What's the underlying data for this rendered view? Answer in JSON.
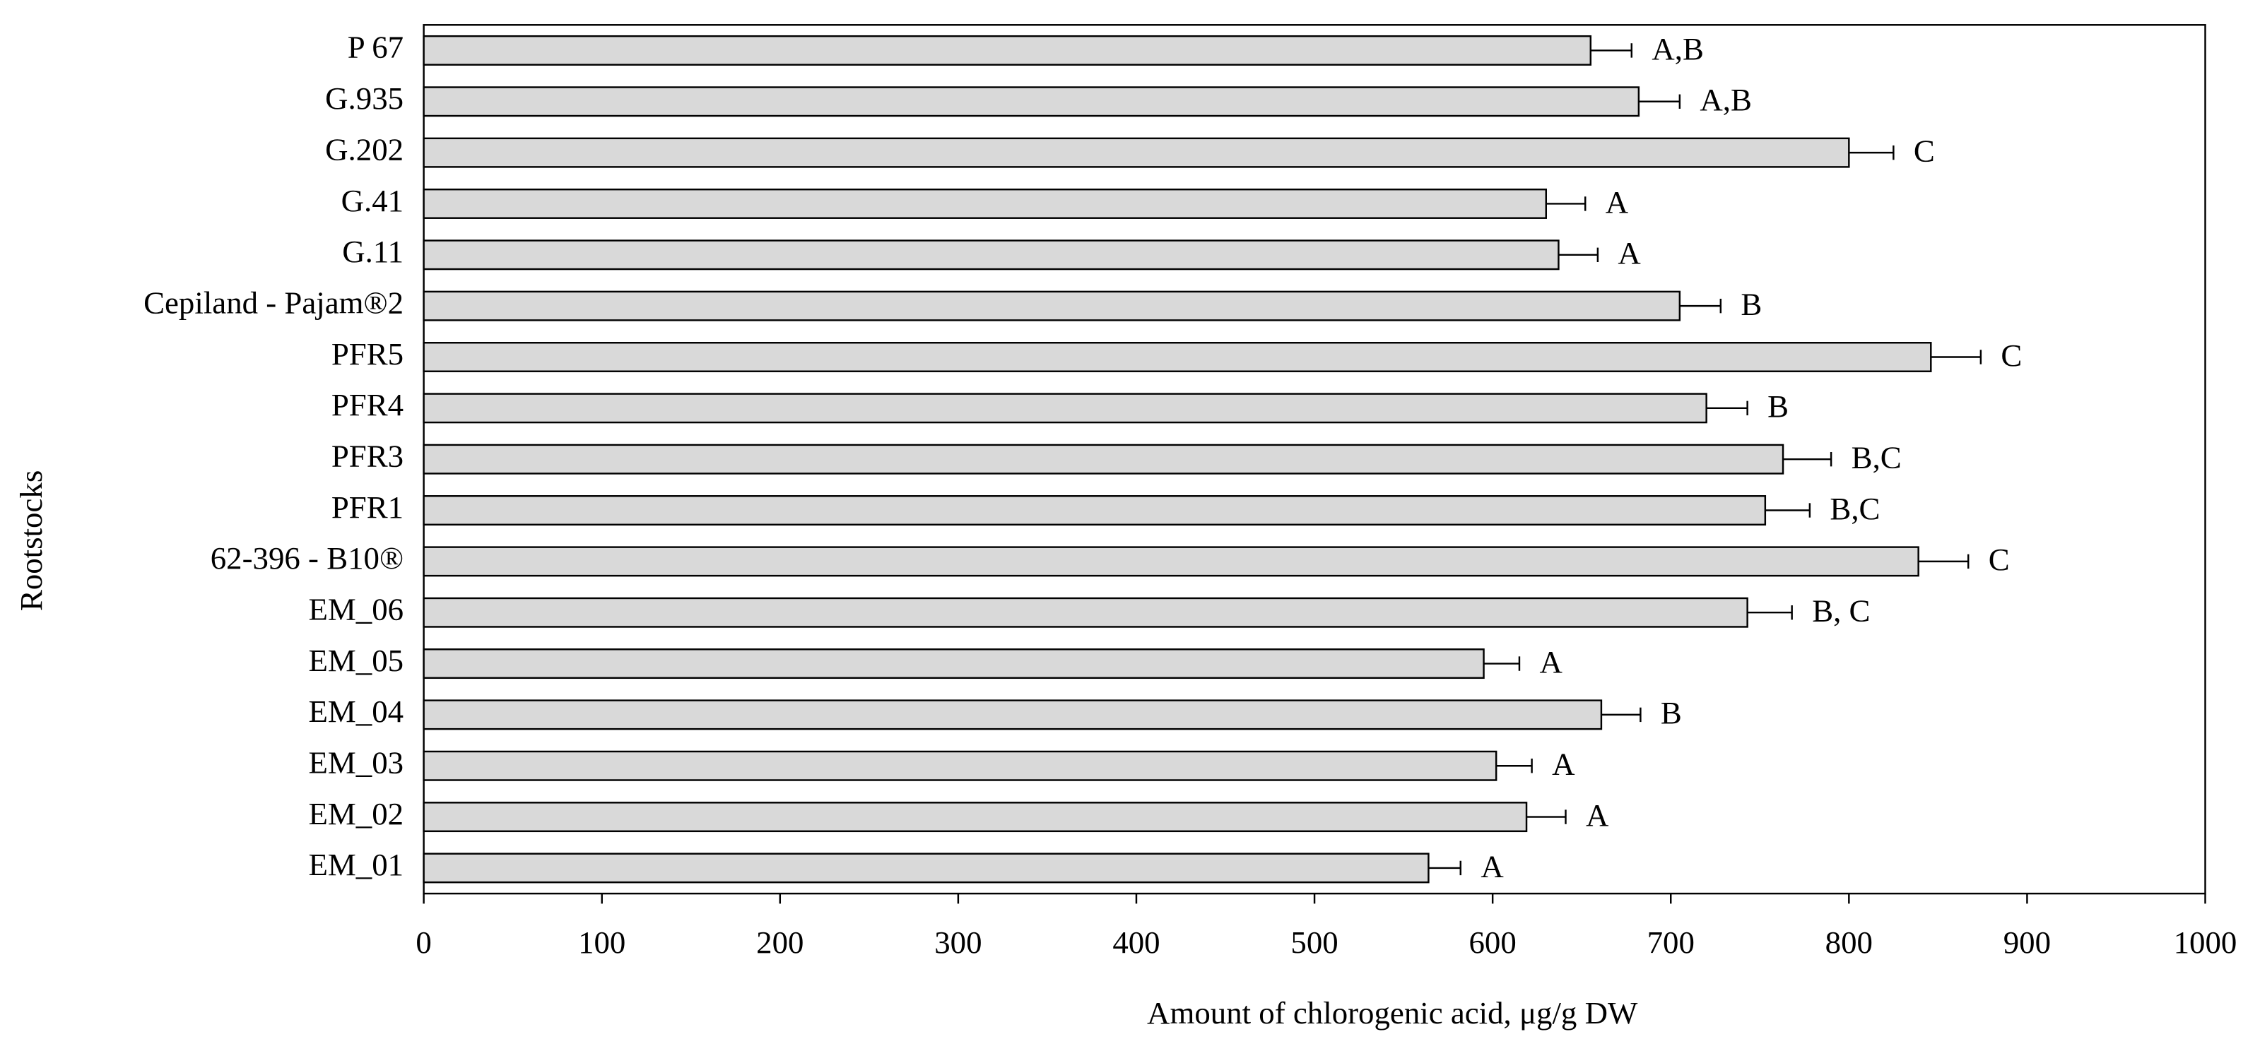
{
  "chart_data": {
    "type": "bar",
    "orientation": "horizontal",
    "categories": [
      "P 67",
      "G.935",
      "G.202",
      "G.41",
      "G.11",
      "Cepiland - Pajam®2",
      "PFR5",
      "PFR4",
      "PFR3",
      "PFR1",
      "62-396 - B10®",
      "EM_06",
      "EM_05",
      "EM_04",
      "EM_03",
      "EM_02",
      "EM_01"
    ],
    "values": [
      655,
      682,
      800,
      630,
      637,
      705,
      846,
      720,
      763,
      753,
      839,
      743,
      595,
      661,
      602,
      619,
      564
    ],
    "errors": [
      23,
      23,
      25,
      22,
      22,
      23,
      28,
      23,
      27,
      25,
      28,
      25,
      20,
      22,
      20,
      22,
      18
    ],
    "annotations": [
      "A,B",
      "A,B",
      "C",
      "A",
      "A",
      "B",
      "C",
      "B",
      "B,C",
      "B,C",
      "C",
      "B, C",
      "A",
      "B",
      "A",
      "A",
      "A"
    ],
    "color": "#d9d9d9",
    "xlabel": "Amount of chlorogenic acid, μg/g DW",
    "ylabel": "Rootstocks",
    "xlim": [
      0,
      1000
    ],
    "xticks": [
      0,
      100,
      200,
      300,
      400,
      500,
      600,
      700,
      800,
      900,
      1000
    ]
  }
}
